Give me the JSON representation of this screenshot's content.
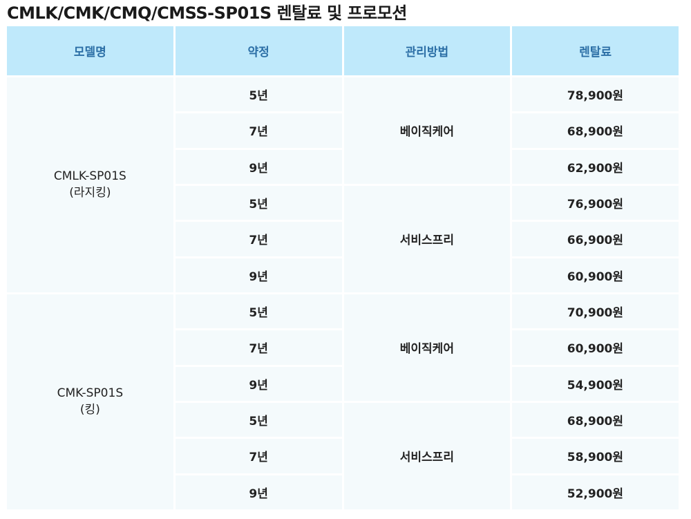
{
  "page_title": "CMLK/CMK/CMQ/CMSS-SP01S 렌탈료 및 프로모션",
  "table": {
    "headers": [
      "모델명",
      "약정",
      "관리방법",
      "렌탈료"
    ],
    "models": [
      {
        "name": "CMLK-SP01S",
        "sub": "(라지킹)",
        "plans": [
          {
            "method": "베이직케어",
            "rows": [
              {
                "term": "5년",
                "price": "78,900원"
              },
              {
                "term": "7년",
                "price": "68,900원"
              },
              {
                "term": "9년",
                "price": "62,900원"
              }
            ]
          },
          {
            "method": "서비스프리",
            "rows": [
              {
                "term": "5년",
                "price": "76,900원"
              },
              {
                "term": "7년",
                "price": "66,900원"
              },
              {
                "term": "9년",
                "price": "60,900원"
              }
            ]
          }
        ]
      },
      {
        "name": "CMK-SP01S",
        "sub": "(킹)",
        "plans": [
          {
            "method": "베이직케어",
            "rows": [
              {
                "term": "5년",
                "price": "70,900원"
              },
              {
                "term": "7년",
                "price": "60,900원"
              },
              {
                "term": "9년",
                "price": "54,900원"
              }
            ]
          },
          {
            "method": "서비스프리",
            "rows": [
              {
                "term": "5년",
                "price": "68,900원"
              },
              {
                "term": "7년",
                "price": "58,900원"
              },
              {
                "term": "9년",
                "price": "52,900원"
              }
            ]
          }
        ]
      }
    ]
  },
  "colors": {
    "header_bg": "#bfe9fb",
    "header_text": "#2c6fa6",
    "cell_bg": "#f4fafc"
  }
}
